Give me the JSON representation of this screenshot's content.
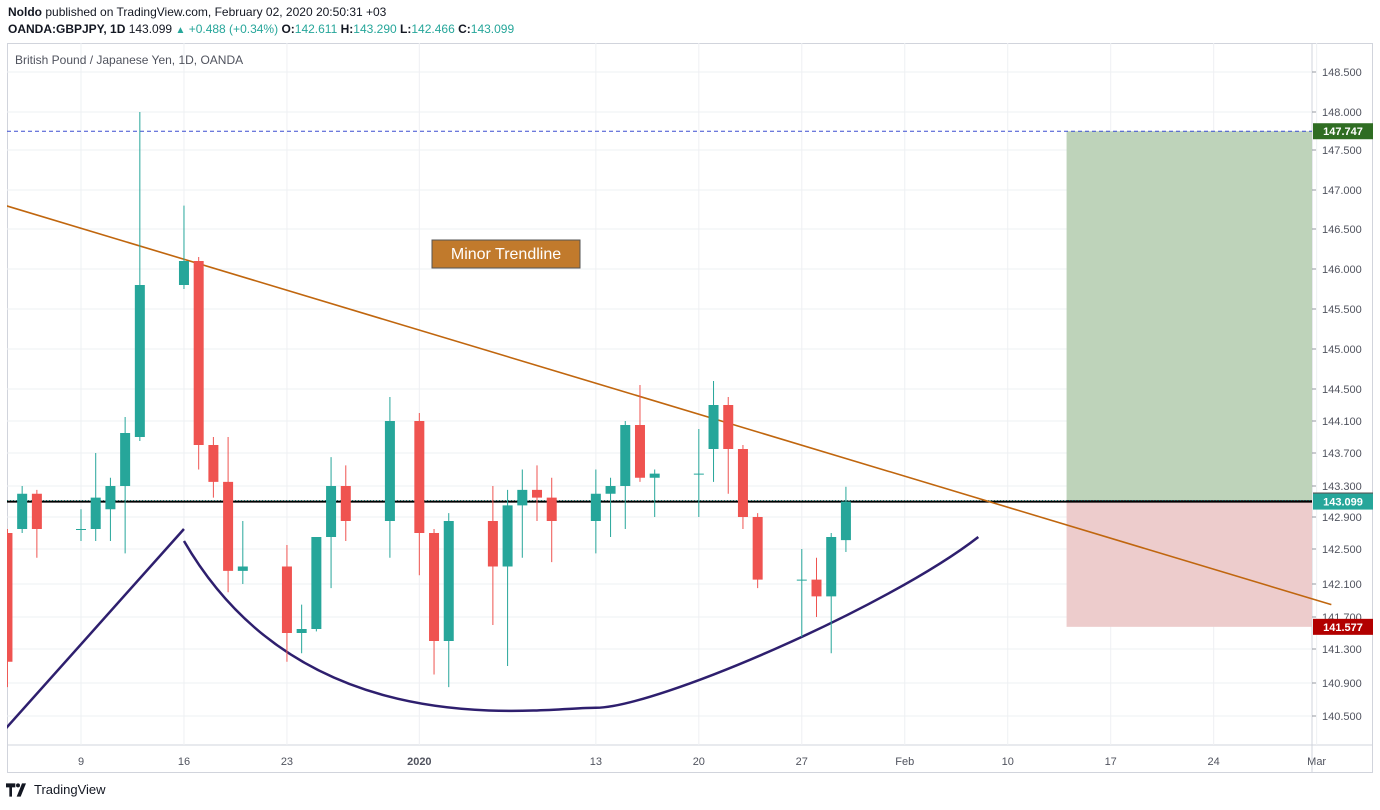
{
  "header": {
    "author": "Noldo",
    "published_text": "published on TradingView.com, February 02, 2020 20:50:31 +03",
    "symbol": "OANDA:GBPJPY, 1D",
    "last": "143.099",
    "change": "+0.488 (+0.34%)",
    "o_label": "O:",
    "o_value": "142.611",
    "h_label": "H:",
    "h_value": "143.290",
    "l_label": "L:",
    "l_value": "142.466",
    "c_label": "C:",
    "c_value": "143.099"
  },
  "footer": {
    "brand": "TradingView"
  },
  "colors": {
    "up": "#26a69a",
    "down": "#ef5350",
    "trendline": "#c0660e",
    "curve": "#2e1f6e",
    "target_zone": "#bbd1b6",
    "stop_zone": "#ecc9c9",
    "target_label": "#2f6d23",
    "stop_label": "#b20000",
    "price_label": "#26a69a",
    "entry_label": "#555555"
  },
  "chart_data": {
    "type": "candlestick",
    "title": "British Pound / Japanese Yen, 1D, OANDA",
    "interval": "1D",
    "y_ticks": [
      "148.500",
      "148.000",
      "147.500",
      "147.000",
      "146.500",
      "146.000",
      "145.500",
      "145.000",
      "144.500",
      "144.100",
      "143.700",
      "143.300",
      "142.900",
      "142.500",
      "142.100",
      "141.700",
      "141.300",
      "140.900",
      "140.500"
    ],
    "x_ticks": [
      {
        "label": "9",
        "date": "2019-12-09"
      },
      {
        "label": "16",
        "date": "2019-12-16"
      },
      {
        "label": "23",
        "date": "2019-12-23"
      },
      {
        "label": "2020",
        "date": "2020-01-01"
      },
      {
        "label": "13",
        "date": "2020-01-13"
      },
      {
        "label": "20",
        "date": "2020-01-20"
      },
      {
        "label": "27",
        "date": "2020-01-27"
      },
      {
        "label": "Feb",
        "date": "2020-02-03"
      },
      {
        "label": "10",
        "date": "2020-02-10"
      },
      {
        "label": "17",
        "date": "2020-02-17"
      },
      {
        "label": "24",
        "date": "2020-02-24"
      },
      {
        "label": "Mar",
        "date": "2020-03-02"
      }
    ],
    "ohlc": [
      {
        "date": "2019-12-04",
        "open": 142.7,
        "high": 142.75,
        "low": 140.85,
        "close": 141.15
      },
      {
        "date": "2019-12-05",
        "open": 142.75,
        "high": 143.3,
        "low": 142.7,
        "close": 143.2
      },
      {
        "date": "2019-12-06",
        "open": 143.2,
        "high": 143.25,
        "low": 142.4,
        "close": 142.75
      },
      {
        "date": "2019-12-09",
        "open": 142.75,
        "high": 143.0,
        "low": 142.6,
        "close": 142.75
      },
      {
        "date": "2019-12-10",
        "open": 142.75,
        "high": 143.7,
        "low": 142.6,
        "close": 143.15
      },
      {
        "date": "2019-12-11",
        "open": 143.0,
        "high": 143.4,
        "low": 142.6,
        "close": 143.3
      },
      {
        "date": "2019-12-12",
        "open": 143.3,
        "high": 144.15,
        "low": 142.45,
        "close": 143.95
      },
      {
        "date": "2019-12-13",
        "open": 143.9,
        "high": 148.0,
        "low": 143.85,
        "close": 145.8
      },
      {
        "date": "2019-12-16",
        "open": 145.8,
        "high": 146.8,
        "low": 145.75,
        "close": 146.1
      },
      {
        "date": "2019-12-17",
        "open": 146.1,
        "high": 146.15,
        "low": 143.5,
        "close": 143.8
      },
      {
        "date": "2019-12-18",
        "open": 143.8,
        "high": 143.9,
        "low": 143.15,
        "close": 143.35
      },
      {
        "date": "2019-12-19",
        "open": 143.35,
        "high": 143.9,
        "low": 142.0,
        "close": 142.25
      },
      {
        "date": "2019-12-20",
        "open": 142.25,
        "high": 142.85,
        "low": 142.1,
        "close": 142.3
      },
      {
        "date": "2019-12-23",
        "open": 142.3,
        "high": 142.55,
        "low": 141.15,
        "close": 141.5
      },
      {
        "date": "2019-12-24",
        "open": 141.5,
        "high": 141.85,
        "low": 141.25,
        "close": 141.55
      },
      {
        "date": "2019-12-25",
        "open": 141.55,
        "high": 142.65,
        "low": 141.52,
        "close": 142.65
      },
      {
        "date": "2019-12-26",
        "open": 142.65,
        "high": 143.65,
        "low": 142.05,
        "close": 143.3
      },
      {
        "date": "2019-12-27",
        "open": 143.3,
        "high": 143.55,
        "low": 142.6,
        "close": 142.85
      },
      {
        "date": "2019-12-30",
        "open": 142.85,
        "high": 144.4,
        "low": 142.4,
        "close": 144.1
      },
      {
        "date": "2020-01-01",
        "open": 144.1,
        "high": 144.2,
        "low": 142.2,
        "close": 142.7
      },
      {
        "date": "2020-01-02",
        "open": 142.7,
        "high": 142.75,
        "low": 141.0,
        "close": 141.4
      },
      {
        "date": "2020-01-03",
        "open": 141.4,
        "high": 142.95,
        "low": 140.85,
        "close": 142.85
      },
      {
        "date": "2020-01-06",
        "open": 142.85,
        "high": 143.3,
        "low": 141.6,
        "close": 142.3
      },
      {
        "date": "2020-01-07",
        "open": 142.3,
        "high": 143.25,
        "low": 141.1,
        "close": 143.05
      },
      {
        "date": "2020-01-08",
        "open": 143.05,
        "high": 143.5,
        "low": 142.4,
        "close": 143.25
      },
      {
        "date": "2020-01-09",
        "open": 143.25,
        "high": 143.55,
        "low": 142.85,
        "close": 143.15
      },
      {
        "date": "2020-01-10",
        "open": 143.15,
        "high": 143.4,
        "low": 142.35,
        "close": 142.85
      },
      {
        "date": "2020-01-13",
        "open": 142.85,
        "high": 143.5,
        "low": 142.45,
        "close": 143.2
      },
      {
        "date": "2020-01-14",
        "open": 143.2,
        "high": 143.4,
        "low": 142.65,
        "close": 143.3
      },
      {
        "date": "2020-01-15",
        "open": 143.3,
        "high": 144.1,
        "low": 142.75,
        "close": 144.05
      },
      {
        "date": "2020-01-16",
        "open": 144.05,
        "high": 144.55,
        "low": 143.35,
        "close": 143.4
      },
      {
        "date": "2020-01-17",
        "open": 143.4,
        "high": 143.5,
        "low": 142.9,
        "close": 143.45
      },
      {
        "date": "2020-01-20",
        "open": 143.45,
        "high": 144.0,
        "low": 142.9,
        "close": 143.45
      },
      {
        "date": "2020-01-21",
        "open": 143.75,
        "high": 144.6,
        "low": 143.35,
        "close": 144.3
      },
      {
        "date": "2020-01-22",
        "open": 144.3,
        "high": 144.4,
        "low": 143.2,
        "close": 143.75
      },
      {
        "date": "2020-01-23",
        "open": 143.75,
        "high": 143.8,
        "low": 142.75,
        "close": 142.9
      },
      {
        "date": "2020-01-24",
        "open": 142.9,
        "high": 142.95,
        "low": 142.05,
        "close": 142.15
      },
      {
        "date": "2020-01-27",
        "open": 142.15,
        "high": 142.5,
        "low": 141.45,
        "close": 142.15
      },
      {
        "date": "2020-01-28",
        "open": 142.15,
        "high": 142.4,
        "low": 141.7,
        "close": 141.95
      },
      {
        "date": "2020-01-29",
        "open": 141.95,
        "high": 142.7,
        "low": 141.25,
        "close": 142.65
      },
      {
        "date": "2020-01-30",
        "open": 142.611,
        "high": 143.29,
        "low": 142.466,
        "close": 143.099
      }
    ],
    "annotations": {
      "trendline_label": "Minor Trendline",
      "trendline": {
        "from": {
          "date": "2019-12-03",
          "price": 146.85
        },
        "to": {
          "date": "2020-03-03",
          "price": 141.85
        }
      },
      "cup_curve": {
        "start": {
          "date": "2019-12-16",
          "price": 142.6
        },
        "bottom": {
          "date": "2020-01-13",
          "price": 140.6
        },
        "end": {
          "date": "2020-02-08",
          "price": 142.65
        }
      },
      "impulse_line": {
        "from": {
          "date": "2019-12-05",
          "price": 140.3
        },
        "to": {
          "date": "2019-12-16",
          "price": 142.75
        }
      },
      "target_price": "147.747",
      "entry_price": "143.113",
      "stop_price": "141.577",
      "current_price": "143.099",
      "neckline_price": 143.099,
      "position_zone": {
        "from_date": "2020-02-14",
        "to_date": "2020-03-03"
      }
    }
  }
}
